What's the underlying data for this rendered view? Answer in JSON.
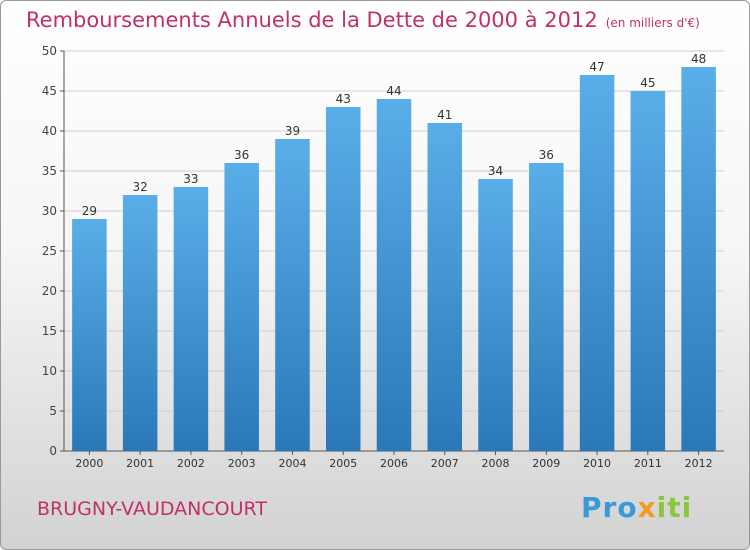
{
  "chart_data": {
    "type": "bar",
    "title": "Remboursements Annuels de la Dette de 2000 à 2012",
    "subtitle": "(en milliers d'€)",
    "categories": [
      "2000",
      "2001",
      "2002",
      "2003",
      "2004",
      "2005",
      "2006",
      "2007",
      "2008",
      "2009",
      "2010",
      "2011",
      "2012"
    ],
    "values": [
      29,
      32,
      33,
      36,
      39,
      43,
      44,
      41,
      34,
      36,
      47,
      45,
      48
    ],
    "ylim": [
      0,
      50
    ],
    "yticks": [
      0,
      5,
      10,
      15,
      20,
      25,
      30,
      35,
      40,
      45,
      50
    ],
    "grid": true,
    "bar_color_top": "#5aaee8",
    "bar_color_bottom": "#2a78b8",
    "title_color": "#c0306a"
  },
  "commune": "BRUGNY-VAUDANCOURT",
  "logo": {
    "parts": [
      "Pro",
      "x",
      "iti"
    ],
    "colors": [
      "#3a9ad9",
      "#f29a1f",
      "#8cc63f"
    ]
  }
}
